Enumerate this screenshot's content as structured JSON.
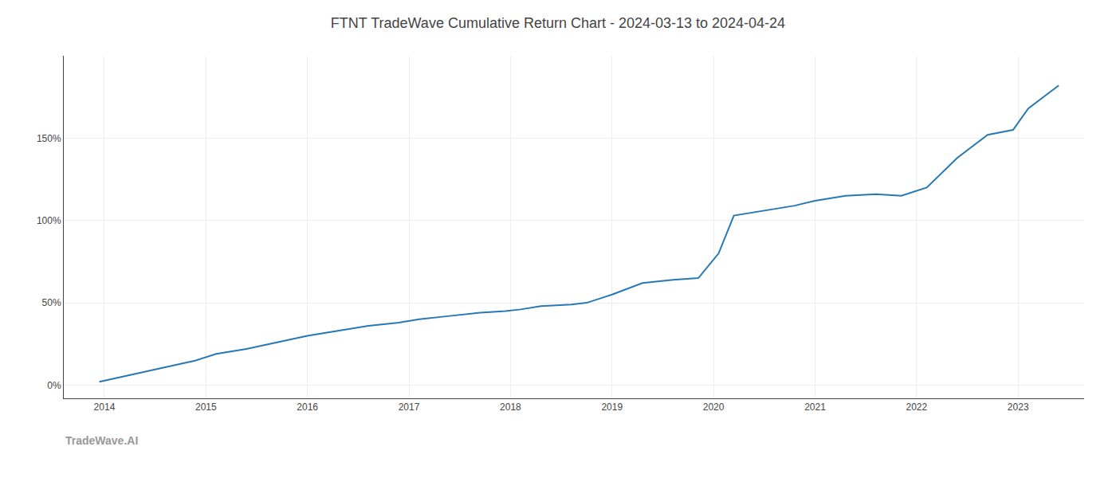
{
  "chart_data": {
    "type": "line",
    "title": "FTNT TradeWave Cumulative Return Chart - 2024-03-13 to 2024-04-24",
    "annotations": [
      "TradeWave.AI"
    ],
    "x": [
      2013.95,
      2014.1,
      2014.3,
      2014.6,
      2014.9,
      2015.1,
      2015.4,
      2015.7,
      2016.0,
      2016.3,
      2016.6,
      2016.9,
      2017.1,
      2017.4,
      2017.7,
      2017.95,
      2018.1,
      2018.3,
      2018.6,
      2018.75,
      2019.0,
      2019.3,
      2019.6,
      2019.85,
      2020.05,
      2020.2,
      2020.5,
      2020.8,
      2021.0,
      2021.3,
      2021.6,
      2021.85,
      2022.1,
      2022.4,
      2022.7,
      2022.95,
      2023.1,
      2023.4
    ],
    "values": [
      2,
      4,
      7,
      11,
      15,
      19,
      22,
      26,
      30,
      33,
      36,
      38,
      40,
      42,
      44,
      45,
      46,
      48,
      49,
      50,
      55,
      62,
      64,
      65,
      80,
      103,
      106,
      109,
      112,
      115,
      116,
      115,
      120,
      138,
      152,
      155,
      168,
      182
    ],
    "color": "#2878b5",
    "xlim": [
      2013.6,
      2023.65
    ],
    "ylim": [
      -8,
      200
    ],
    "xticks": [
      2014,
      2015,
      2016,
      2017,
      2018,
      2019,
      2020,
      2021,
      2022,
      2023
    ],
    "yticks": [
      {
        "value": 0,
        "label": "0%"
      },
      {
        "value": 50,
        "label": "50%"
      },
      {
        "value": 100,
        "label": "100%"
      },
      {
        "value": 150,
        "label": "150%"
      }
    ],
    "grid": true
  }
}
